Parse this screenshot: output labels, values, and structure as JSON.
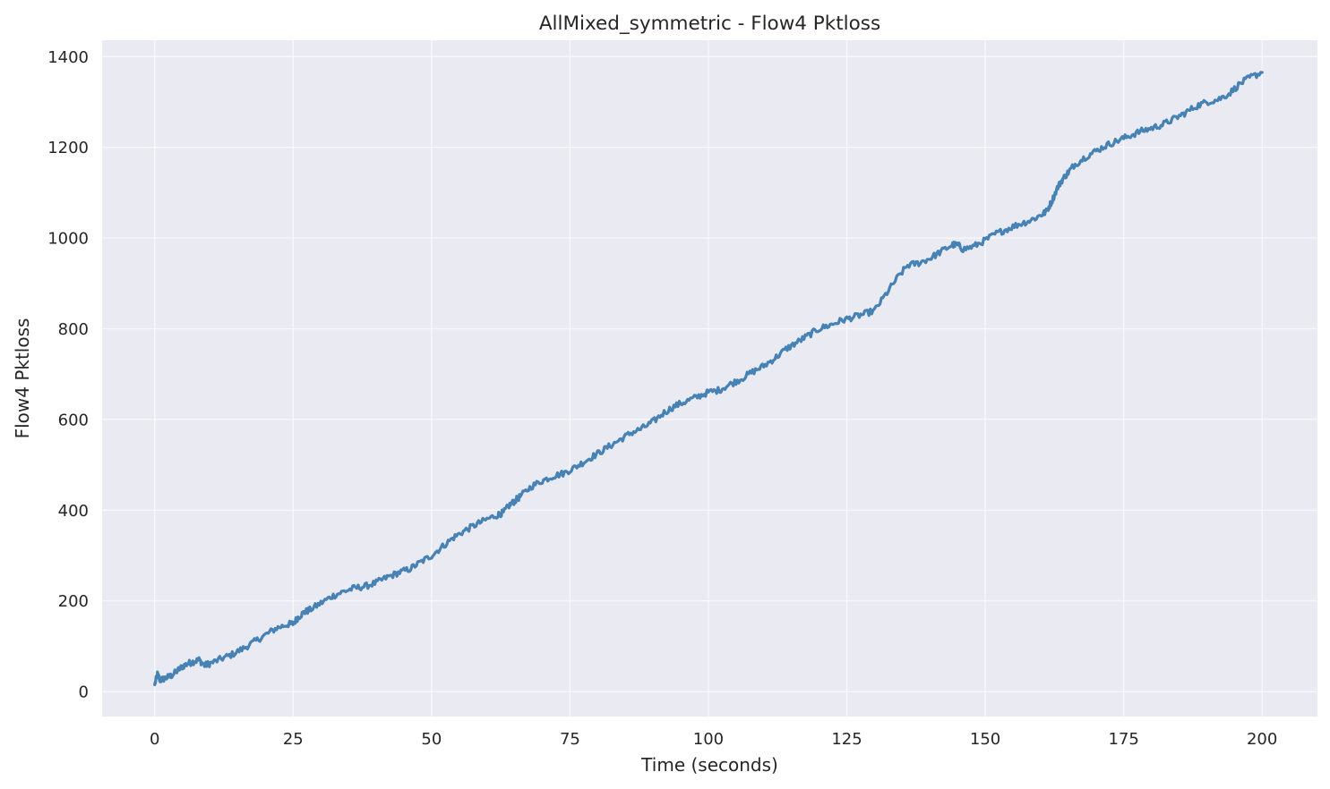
{
  "chart_data": {
    "type": "line",
    "title": "AllMixed_symmetric - Flow4 Pktloss",
    "xlabel": "Time (seconds)",
    "ylabel": "Flow4 Pktloss",
    "xlim": [
      -9.5,
      210
    ],
    "ylim": [
      -55,
      1436
    ],
    "xticks": [
      0,
      25,
      50,
      75,
      100,
      125,
      150,
      175,
      200
    ],
    "yticks": [
      0,
      200,
      400,
      600,
      800,
      1000,
      1200,
      1400
    ],
    "grid": true,
    "legend": "none",
    "colors": {
      "line": "#4682b4",
      "plot_bg": "#eaeaf2",
      "grid": "#ffffff",
      "text": "#262626"
    },
    "series": [
      {
        "x": [
          0,
          0.5,
          1,
          2,
          3,
          4,
          5,
          6,
          7,
          8,
          9,
          10,
          12,
          14,
          16,
          18,
          20,
          22,
          24,
          25,
          26,
          27,
          28,
          30,
          32,
          34,
          36,
          38,
          40,
          42,
          44,
          46,
          48,
          50,
          52,
          54,
          56,
          58,
          60,
          62,
          63,
          64,
          65,
          66,
          68,
          70,
          72,
          74,
          76,
          78,
          80,
          82,
          84,
          86,
          88,
          90,
          92,
          94,
          96,
          98,
          100,
          102,
          104,
          106,
          108,
          110,
          112,
          114,
          116,
          118,
          120,
          122,
          124,
          126,
          128,
          130,
          132,
          134,
          136,
          138,
          140,
          142,
          144,
          145,
          146,
          148,
          150,
          152,
          154,
          156,
          158,
          160,
          161,
          162,
          163,
          164,
          165,
          166,
          168,
          170,
          172,
          174,
          176,
          178,
          180,
          182,
          184,
          186,
          188,
          190,
          192,
          194,
          196,
          198,
          200
        ],
        "y": [
          15,
          38,
          25,
          30,
          35,
          45,
          55,
          62,
          66,
          70,
          58,
          62,
          72,
          82,
          95,
          110,
          125,
          140,
          148,
          150,
          165,
          175,
          180,
          195,
          210,
          220,
          228,
          232,
          240,
          252,
          262,
          270,
          285,
          300,
          320,
          340,
          355,
          368,
          380,
          390,
          395,
          410,
          420,
          430,
          452,
          465,
          475,
          482,
          495,
          510,
          525,
          540,
          555,
          570,
          580,
          595,
          615,
          630,
          640,
          650,
          660,
          665,
          678,
          690,
          705,
          718,
          735,
          755,
          770,
          785,
          800,
          808,
          818,
          825,
          832,
          840,
          875,
          910,
          940,
          945,
          955,
          970,
          985,
          985,
          975,
          982,
          995,
          1010,
          1020,
          1030,
          1038,
          1050,
          1058,
          1080,
          1110,
          1130,
          1145,
          1160,
          1178,
          1192,
          1205,
          1215,
          1225,
          1235,
          1242,
          1250,
          1262,
          1275,
          1290,
          1300,
          1305,
          1318,
          1340,
          1355,
          1365
        ]
      }
    ]
  }
}
